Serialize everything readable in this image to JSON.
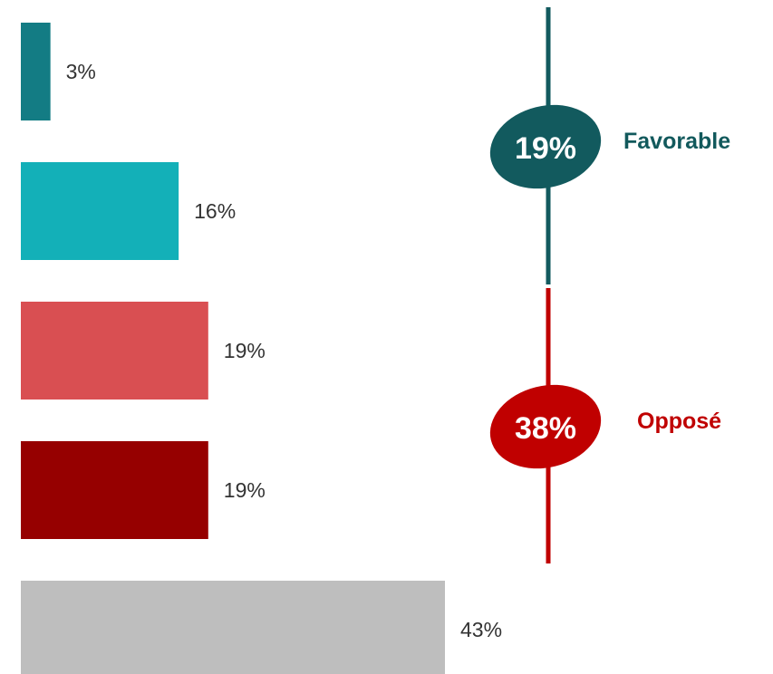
{
  "chart_data": {
    "type": "bar",
    "orientation": "horizontal",
    "value_labels": [
      "3%",
      "16%",
      "19%",
      "19%",
      "43%"
    ],
    "values": [
      3,
      16,
      19,
      19,
      43
    ],
    "colors": [
      "#137c84",
      "#13b0b8",
      "#d94f52",
      "#960000",
      "#bebebe"
    ],
    "xlim": [
      0,
      43
    ],
    "grid": false,
    "groups": [
      {
        "name": "Favorable",
        "value": 19,
        "value_label": "19%",
        "color": "#125a5e",
        "label_color": "#12595c",
        "bars": [
          0,
          1
        ]
      },
      {
        "name": "Opposé",
        "value": 38,
        "value_label": "38%",
        "color": "#c00000",
        "label_color": "#c00000",
        "bars": [
          2,
          3
        ]
      }
    ]
  }
}
